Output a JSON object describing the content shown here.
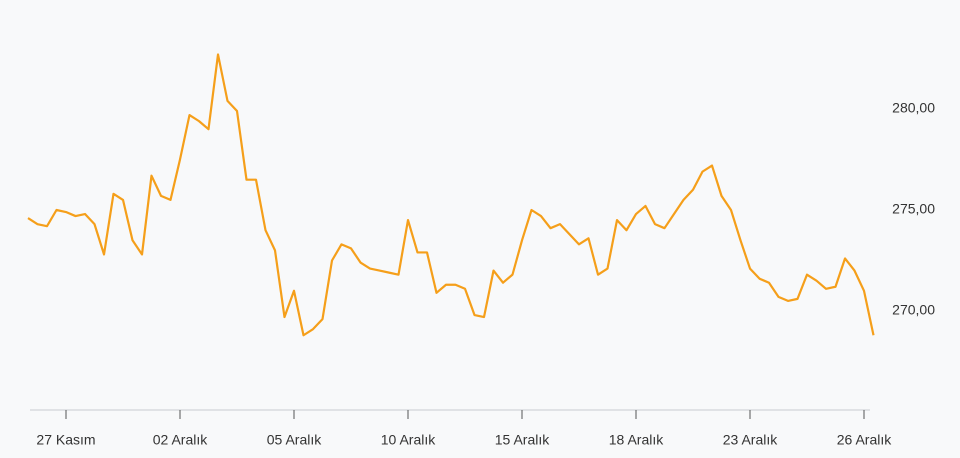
{
  "chart_data": {
    "type": "line",
    "color": "#f59f1a",
    "categories": [
      null,
      null,
      null,
      null,
      "27 Kasım",
      null,
      null,
      null,
      null,
      null,
      null,
      null,
      null,
      null,
      null,
      null,
      "02 Aralık",
      null,
      null,
      null,
      null,
      null,
      null,
      null,
      null,
      null,
      null,
      null,
      "05 Aralık",
      null,
      null,
      null,
      null,
      null,
      null,
      null,
      null,
      null,
      null,
      null,
      "10 Aralık",
      null,
      null,
      null,
      null,
      null,
      null,
      null,
      null,
      null,
      null,
      null,
      "15 Aralık",
      null,
      null,
      null,
      null,
      null,
      null,
      null,
      null,
      null,
      null,
      null,
      "18 Aralık",
      null,
      null,
      null,
      null,
      null,
      null,
      null,
      null,
      null,
      null,
      null,
      "23 Aralık",
      null,
      null,
      null,
      null,
      null,
      null,
      null,
      null,
      null,
      null,
      null,
      "26 Aralık",
      null
    ],
    "values": [
      274.6,
      274.3,
      274.2,
      275.0,
      274.9,
      274.7,
      274.8,
      274.3,
      272.8,
      275.8,
      275.5,
      273.5,
      272.8,
      276.7,
      275.7,
      275.5,
      277.5,
      279.7,
      279.4,
      279.0,
      282.7,
      280.4,
      279.9,
      276.5,
      276.5,
      274.0,
      273.0,
      269.7,
      271.0,
      268.8,
      269.1,
      269.6,
      272.5,
      273.3,
      273.1,
      272.4,
      272.1,
      272.0,
      271.9,
      271.8,
      274.5,
      272.9,
      272.9,
      270.9,
      271.3,
      271.3,
      271.1,
      269.8,
      269.7,
      272.0,
      271.4,
      271.8,
      273.5,
      275.0,
      274.7,
      274.1,
      274.3,
      273.8,
      273.3,
      273.6,
      271.8,
      272.1,
      274.5,
      274.0,
      274.8,
      275.2,
      274.3,
      274.1,
      274.8,
      275.5,
      276.0,
      276.9,
      277.2,
      275.7,
      275.0,
      273.5,
      272.1,
      271.6,
      271.4,
      270.7,
      270.5,
      270.6,
      271.8,
      271.5,
      271.1,
      271.2,
      272.6,
      272.0,
      271.0,
      268.8
    ],
    "ylim": [
      265,
      285
    ],
    "yticks": [
      {
        "value": 270,
        "label": "270,00"
      },
      {
        "value": 275,
        "label": "275,00"
      },
      {
        "value": 280,
        "label": "280,00"
      }
    ]
  }
}
